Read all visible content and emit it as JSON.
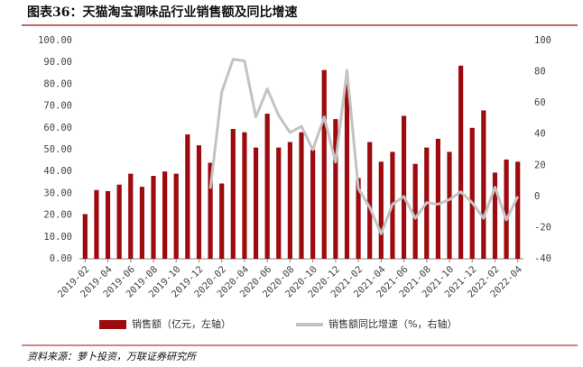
{
  "chart_data": {
    "type": "combo",
    "title": "图表36：天猫淘宝调味品行业销售额及同比增速",
    "source": "资料来源：萝卜投资，万联证券研究所",
    "categories": [
      "2019-02",
      null,
      "2019-04",
      null,
      "2019-06",
      null,
      "2019-08",
      null,
      "2019-10",
      null,
      "2019-12",
      null,
      "2020-02",
      null,
      "2020-04",
      null,
      "2020-06",
      null,
      "2020-08",
      null,
      "2020-10",
      null,
      "2020-12",
      null,
      "2021-02",
      null,
      "2021-04",
      null,
      "2021-06",
      null,
      "2021-08",
      null,
      "2021-10",
      null,
      "2021-12",
      null,
      "2022-02",
      null,
      "2022-04"
    ],
    "series": [
      {
        "name": "销售额（亿元，左轴）",
        "type": "bar",
        "color": "#9e0b0f",
        "values": [
          20.5,
          31.5,
          31,
          34,
          39,
          33,
          38,
          40,
          39,
          57,
          52,
          44,
          34.5,
          59.5,
          58,
          51,
          66.5,
          51,
          53.5,
          58,
          50,
          86.5,
          64,
          80,
          37,
          53.5,
          44.5,
          49,
          65.5,
          43.5,
          51,
          55,
          49,
          88.5,
          60,
          68,
          39.5,
          45.5,
          44.5
        ]
      },
      {
        "name": "销售额同比增速（%，右轴）",
        "type": "line",
        "axis": "y2",
        "color": "#c3c3c3",
        "values": [
          null,
          null,
          null,
          null,
          null,
          null,
          null,
          null,
          null,
          null,
          null,
          5,
          67,
          88,
          87,
          51,
          69,
          52,
          41,
          45,
          30,
          51,
          22,
          81,
          5,
          -7,
          -24,
          -5,
          0,
          -14,
          -4,
          -5,
          -2,
          3,
          -4,
          -14,
          6,
          -15,
          0
        ]
      }
    ],
    "ylim": [
      0,
      100
    ],
    "yticks": [
      {
        "value": 0,
        "label": "0.00"
      },
      {
        "value": 10,
        "label": "10.00"
      },
      {
        "value": 20,
        "label": "20.00"
      },
      {
        "value": 30,
        "label": "30.00"
      },
      {
        "value": 40,
        "label": "40.00"
      },
      {
        "value": 50,
        "label": "50.00"
      },
      {
        "value": 60,
        "label": "60.00"
      },
      {
        "value": 70,
        "label": "70.00"
      },
      {
        "value": 80,
        "label": "80.00"
      },
      {
        "value": 90,
        "label": "90.00"
      },
      {
        "value": 100,
        "label": "100.00"
      }
    ],
    "y2lim": [
      -40,
      100
    ],
    "y2ticks": [
      -40,
      -20,
      0,
      20,
      40,
      60,
      80,
      100
    ]
  }
}
